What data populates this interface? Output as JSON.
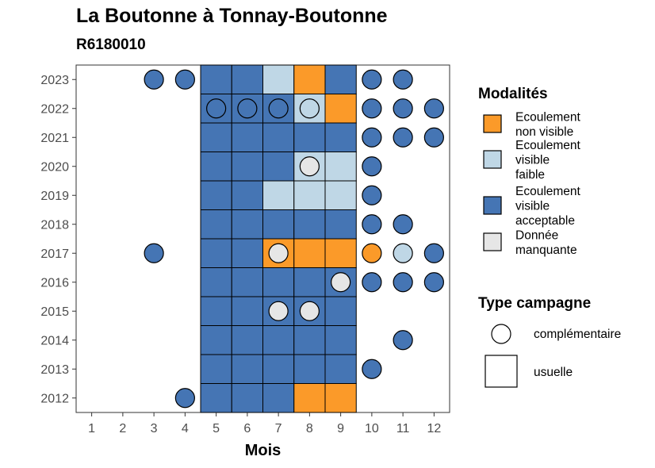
{
  "chart_data": {
    "type": "heatmap",
    "title": "La Boutonne à Tonnay-Boutonne",
    "subtitle": "R6180010",
    "xlabel": "Mois",
    "ylabel": "",
    "x_ticks": [
      "1",
      "2",
      "3",
      "4",
      "5",
      "6",
      "7",
      "8",
      "9",
      "10",
      "11",
      "12"
    ],
    "y_ticks": [
      "2012",
      "2013",
      "2014",
      "2015",
      "2016",
      "2017",
      "2018",
      "2019",
      "2020",
      "2021",
      "2022",
      "2023"
    ],
    "xlim": [
      0.5,
      12.5
    ],
    "ylim": [
      2011.5,
      2023.5
    ],
    "colors": {
      "non_visible": "#FB9A29",
      "faible": "#BFD7E6",
      "acceptable": "#4575B4",
      "manquante": "#E6E6E6",
      "outline": "#000000"
    },
    "legend": {
      "modalites_title": "Modalités",
      "modalites": [
        {
          "key": "non_visible",
          "lines": [
            "Ecoulement",
            "non visible"
          ]
        },
        {
          "key": "faible",
          "lines": [
            "Ecoulement",
            "visible",
            "faible"
          ]
        },
        {
          "key": "acceptable",
          "lines": [
            "Ecoulement",
            "visible",
            "acceptable"
          ]
        },
        {
          "key": "manquante",
          "lines": [
            "Donnée",
            "manquante"
          ]
        }
      ],
      "type_title": "Type campagne",
      "types": [
        {
          "key": "complementaire",
          "label": "complémentaire",
          "shape": "circle"
        },
        {
          "key": "usuelle",
          "label": "usuelle",
          "shape": "square"
        }
      ]
    },
    "usuelle": [
      {
        "year": 2023,
        "month": 5,
        "value": "acceptable"
      },
      {
        "year": 2023,
        "month": 6,
        "value": "acceptable"
      },
      {
        "year": 2023,
        "month": 7,
        "value": "faible"
      },
      {
        "year": 2023,
        "month": 8,
        "value": "non_visible"
      },
      {
        "year": 2023,
        "month": 9,
        "value": "acceptable"
      },
      {
        "year": 2022,
        "month": 5,
        "value": "acceptable"
      },
      {
        "year": 2022,
        "month": 6,
        "value": "acceptable"
      },
      {
        "year": 2022,
        "month": 7,
        "value": "acceptable"
      },
      {
        "year": 2022,
        "month": 8,
        "value": "faible"
      },
      {
        "year": 2022,
        "month": 9,
        "value": "non_visible"
      },
      {
        "year": 2021,
        "month": 5,
        "value": "acceptable"
      },
      {
        "year": 2021,
        "month": 6,
        "value": "acceptable"
      },
      {
        "year": 2021,
        "month": 7,
        "value": "acceptable"
      },
      {
        "year": 2021,
        "month": 8,
        "value": "acceptable"
      },
      {
        "year": 2021,
        "month": 9,
        "value": "acceptable"
      },
      {
        "year": 2020,
        "month": 5,
        "value": "acceptable"
      },
      {
        "year": 2020,
        "month": 6,
        "value": "acceptable"
      },
      {
        "year": 2020,
        "month": 7,
        "value": "acceptable"
      },
      {
        "year": 2020,
        "month": 8,
        "value": "faible"
      },
      {
        "year": 2020,
        "month": 9,
        "value": "faible"
      },
      {
        "year": 2019,
        "month": 5,
        "value": "acceptable"
      },
      {
        "year": 2019,
        "month": 6,
        "value": "acceptable"
      },
      {
        "year": 2019,
        "month": 7,
        "value": "faible"
      },
      {
        "year": 2019,
        "month": 8,
        "value": "faible"
      },
      {
        "year": 2019,
        "month": 9,
        "value": "faible"
      },
      {
        "year": 2018,
        "month": 5,
        "value": "acceptable"
      },
      {
        "year": 2018,
        "month": 6,
        "value": "acceptable"
      },
      {
        "year": 2018,
        "month": 7,
        "value": "acceptable"
      },
      {
        "year": 2018,
        "month": 8,
        "value": "acceptable"
      },
      {
        "year": 2018,
        "month": 9,
        "value": "acceptable"
      },
      {
        "year": 2017,
        "month": 5,
        "value": "acceptable"
      },
      {
        "year": 2017,
        "month": 6,
        "value": "acceptable"
      },
      {
        "year": 2017,
        "month": 7,
        "value": "non_visible"
      },
      {
        "year": 2017,
        "month": 8,
        "value": "non_visible"
      },
      {
        "year": 2017,
        "month": 9,
        "value": "non_visible"
      },
      {
        "year": 2016,
        "month": 5,
        "value": "acceptable"
      },
      {
        "year": 2016,
        "month": 6,
        "value": "acceptable"
      },
      {
        "year": 2016,
        "month": 7,
        "value": "acceptable"
      },
      {
        "year": 2016,
        "month": 8,
        "value": "acceptable"
      },
      {
        "year": 2016,
        "month": 9,
        "value": "acceptable"
      },
      {
        "year": 2015,
        "month": 5,
        "value": "acceptable"
      },
      {
        "year": 2015,
        "month": 6,
        "value": "acceptable"
      },
      {
        "year": 2015,
        "month": 7,
        "value": "acceptable"
      },
      {
        "year": 2015,
        "month": 8,
        "value": "acceptable"
      },
      {
        "year": 2015,
        "month": 9,
        "value": "acceptable"
      },
      {
        "year": 2014,
        "month": 5,
        "value": "acceptable"
      },
      {
        "year": 2014,
        "month": 6,
        "value": "acceptable"
      },
      {
        "year": 2014,
        "month": 7,
        "value": "acceptable"
      },
      {
        "year": 2014,
        "month": 8,
        "value": "acceptable"
      },
      {
        "year": 2014,
        "month": 9,
        "value": "acceptable"
      },
      {
        "year": 2013,
        "month": 5,
        "value": "acceptable"
      },
      {
        "year": 2013,
        "month": 6,
        "value": "acceptable"
      },
      {
        "year": 2013,
        "month": 7,
        "value": "acceptable"
      },
      {
        "year": 2013,
        "month": 8,
        "value": "acceptable"
      },
      {
        "year": 2013,
        "month": 9,
        "value": "acceptable"
      },
      {
        "year": 2012,
        "month": 5,
        "value": "acceptable"
      },
      {
        "year": 2012,
        "month": 6,
        "value": "acceptable"
      },
      {
        "year": 2012,
        "month": 7,
        "value": "acceptable"
      },
      {
        "year": 2012,
        "month": 8,
        "value": "non_visible"
      },
      {
        "year": 2012,
        "month": 9,
        "value": "non_visible"
      }
    ],
    "complementaire": [
      {
        "year": 2023,
        "month": 3,
        "value": "acceptable"
      },
      {
        "year": 2023,
        "month": 4,
        "value": "acceptable"
      },
      {
        "year": 2023,
        "month": 10,
        "value": "acceptable"
      },
      {
        "year": 2023,
        "month": 11,
        "value": "acceptable"
      },
      {
        "year": 2022,
        "month": 5,
        "value": "acceptable"
      },
      {
        "year": 2022,
        "month": 6,
        "value": "acceptable"
      },
      {
        "year": 2022,
        "month": 7,
        "value": "acceptable"
      },
      {
        "year": 2022,
        "month": 8,
        "value": "faible"
      },
      {
        "year": 2022,
        "month": 10,
        "value": "acceptable"
      },
      {
        "year": 2022,
        "month": 11,
        "value": "acceptable"
      },
      {
        "year": 2022,
        "month": 12,
        "value": "acceptable"
      },
      {
        "year": 2021,
        "month": 10,
        "value": "acceptable"
      },
      {
        "year": 2021,
        "month": 11,
        "value": "acceptable"
      },
      {
        "year": 2021,
        "month": 12,
        "value": "acceptable"
      },
      {
        "year": 2020,
        "month": 8,
        "value": "manquante"
      },
      {
        "year": 2020,
        "month": 10,
        "value": "acceptable"
      },
      {
        "year": 2019,
        "month": 10,
        "value": "acceptable"
      },
      {
        "year": 2018,
        "month": 10,
        "value": "acceptable"
      },
      {
        "year": 2018,
        "month": 11,
        "value": "acceptable"
      },
      {
        "year": 2017,
        "month": 3,
        "value": "acceptable"
      },
      {
        "year": 2017,
        "month": 7,
        "value": "manquante"
      },
      {
        "year": 2017,
        "month": 10,
        "value": "non_visible"
      },
      {
        "year": 2017,
        "month": 11,
        "value": "faible"
      },
      {
        "year": 2017,
        "month": 12,
        "value": "acceptable"
      },
      {
        "year": 2016,
        "month": 9,
        "value": "manquante"
      },
      {
        "year": 2016,
        "month": 10,
        "value": "acceptable"
      },
      {
        "year": 2016,
        "month": 11,
        "value": "acceptable"
      },
      {
        "year": 2016,
        "month": 12,
        "value": "acceptable"
      },
      {
        "year": 2015,
        "month": 7,
        "value": "manquante"
      },
      {
        "year": 2015,
        "month": 8,
        "value": "manquante"
      },
      {
        "year": 2014,
        "month": 11,
        "value": "acceptable"
      },
      {
        "year": 2013,
        "month": 10,
        "value": "acceptable"
      },
      {
        "year": 2012,
        "month": 4,
        "value": "acceptable"
      }
    ]
  }
}
